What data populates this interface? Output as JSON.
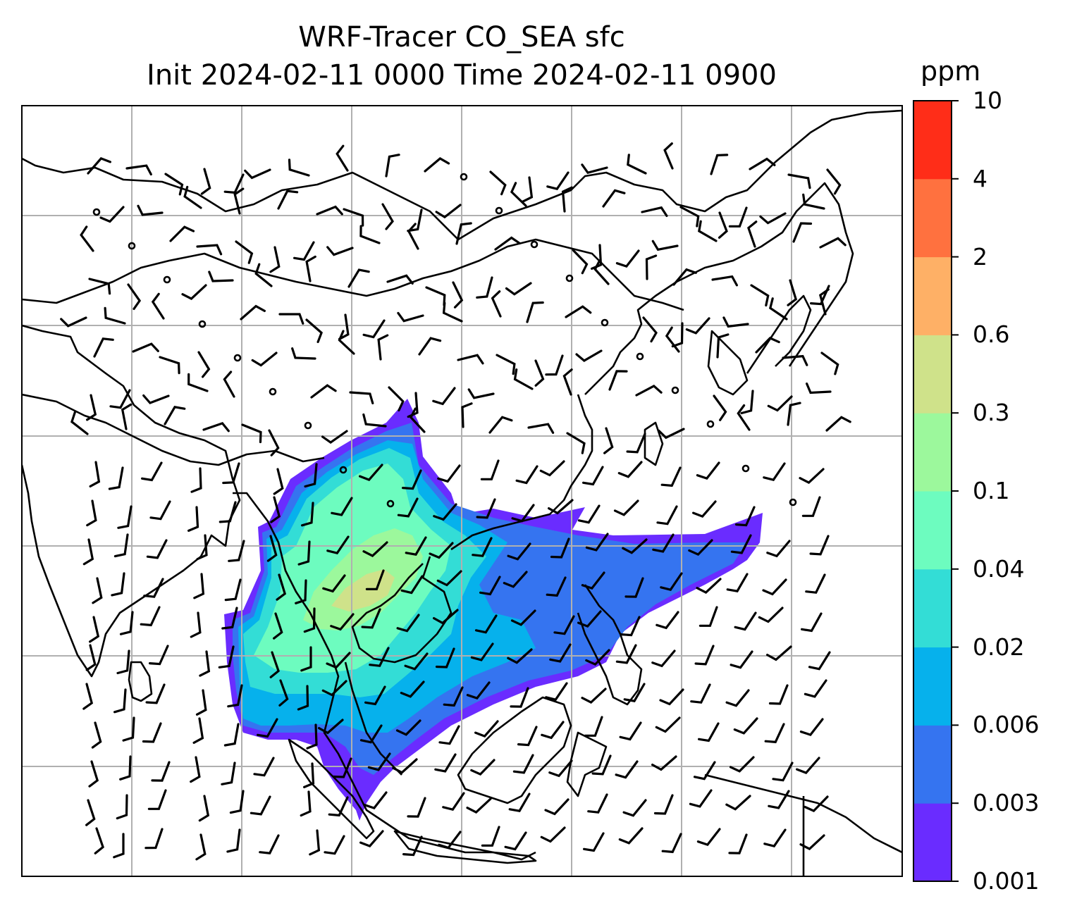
{
  "title": {
    "line1": "WRF-Tracer CO_SEA sfc",
    "line2": "Init 2024-02-11 0000 Time 2024-02-11 0900"
  },
  "colorbar": {
    "unit": "ppm",
    "levels": [
      "0.001",
      "0.003",
      "0.006",
      "0.02",
      "0.04",
      "0.1",
      "0.3",
      "0.6",
      "2",
      "4",
      "10"
    ],
    "colors": [
      "#6a2cff",
      "#3574f0",
      "#06b1ec",
      "#33ddd6",
      "#6dfcbf",
      "#9cf89c",
      "#cfe28a",
      "#feb066",
      "#ff713f",
      "#ff2d18"
    ]
  },
  "map": {
    "grid": "on",
    "land_outline_color": "#000000",
    "grid_color": "#b0b0b0",
    "wind_symbols": "barbs",
    "calm_symbol": "circle"
  }
}
